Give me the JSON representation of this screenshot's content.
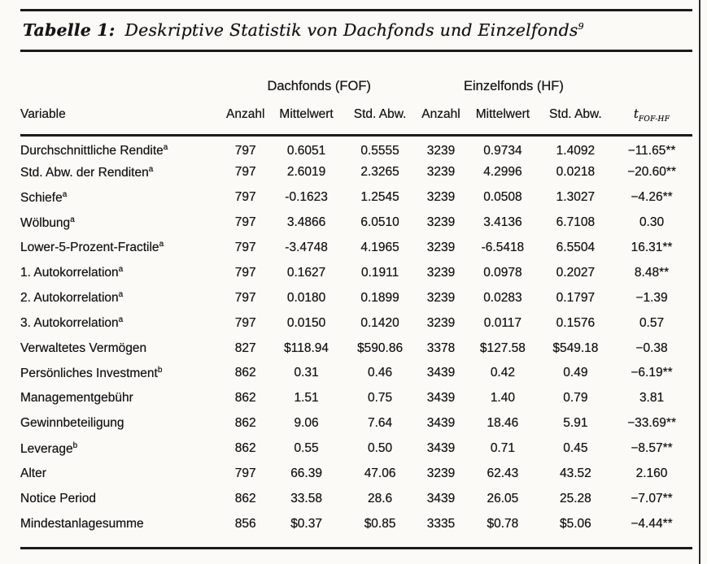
{
  "caption": {
    "label": "Tabelle 1:",
    "text": "Deskriptive Statistik von Dachfonds und Einzelfonds",
    "superscript": "9"
  },
  "table": {
    "group_headers": {
      "fof": "Dachfonds (FOF)",
      "hf": "Einzelfonds (HF)"
    },
    "columns": {
      "variable": "Variable",
      "anzahl_fof": "Anzahl",
      "mittelwert_fof": "Mittelwert",
      "std_abw_fof": "Std. Abw.",
      "anzahl_hf": "Anzahl",
      "mittelwert_hf": "Mittelwert",
      "std_abw_hf": "Std. Abw.",
      "t_base": "t",
      "t_sub": "FOF-HF"
    },
    "rows": [
      {
        "variable": "Durchschnittliche Rendite",
        "sup": "a",
        "values": [
          "797",
          "0.6051",
          "0.5555",
          "3239",
          "0.9734",
          "1.4092",
          "−11.65**"
        ]
      },
      {
        "variable": "Std. Abw. der Renditen",
        "sup": "a",
        "values": [
          "797",
          "2.6019",
          "2.3265",
          "3239",
          "4.2996",
          "0.0218",
          "−20.60**"
        ]
      },
      {
        "variable": "Schiefe",
        "sup": "a",
        "values": [
          "797",
          "-0.1623",
          "1.2545",
          "3239",
          "0.0508",
          "1.3027",
          "−4.26**"
        ]
      },
      {
        "variable": "Wölbung",
        "sup": "a",
        "values": [
          "797",
          "3.4866",
          "6.0510",
          "3239",
          "3.4136",
          "6.7108",
          "0.30"
        ]
      },
      {
        "variable": "Lower-5-Prozent-Fractile",
        "sup": "a",
        "values": [
          "797",
          "-3.4748",
          "4.1965",
          "3239",
          "-6.5418",
          "6.5504",
          "16.31**"
        ]
      },
      {
        "variable": "1. Autokorrelation",
        "sup": "a",
        "values": [
          "797",
          "0.1627",
          "0.1911",
          "3239",
          "0.0978",
          "0.2027",
          "8.48**"
        ]
      },
      {
        "variable": "2. Autokorrelation",
        "sup": "a",
        "values": [
          "797",
          "0.0180",
          "0.1899",
          "3239",
          "0.0283",
          "0.1797",
          "−1.39"
        ]
      },
      {
        "variable": "3. Autokorrelation",
        "sup": "a",
        "values": [
          "797",
          "0.0150",
          "0.1420",
          "3239",
          "0.0117",
          "0.1576",
          "0.57"
        ]
      },
      {
        "variable": "Verwaltetes Vermögen",
        "sup": "",
        "values": [
          "827",
          "$118.94",
          "$590.86",
          "3378",
          "$127.58",
          "$549.18",
          "−0.38"
        ]
      },
      {
        "variable": "Persönliches Investment",
        "sup": "b",
        "values": [
          "862",
          "0.31",
          "0.46",
          "3439",
          "0.42",
          "0.49",
          "−6.19**"
        ]
      },
      {
        "variable": "Managementgebühr",
        "sup": "",
        "values": [
          "862",
          "1.51",
          "0.75",
          "3439",
          "1.40",
          "0.79",
          "3.81"
        ]
      },
      {
        "variable": "Gewinnbeteiligung",
        "sup": "",
        "values": [
          "862",
          "9.06",
          "7.64",
          "3439",
          "18.46",
          "5.91",
          "−33.69**"
        ]
      },
      {
        "variable": "Leverage",
        "sup": "b",
        "values": [
          "862",
          "0.55",
          "0.50",
          "3439",
          "0.71",
          "0.45",
          "−8.57**"
        ]
      },
      {
        "variable": "Alter",
        "sup": "",
        "values": [
          "797",
          "66.39",
          "47.06",
          "3239",
          "62.43",
          "43.52",
          "2.160"
        ]
      },
      {
        "variable": "Notice Period",
        "sup": "",
        "values": [
          "862",
          "33.58",
          "28.6",
          "3439",
          "26.05",
          "25.28",
          "−7.07**"
        ]
      },
      {
        "variable": "Mindestanlagesumme",
        "sup": "",
        "values": [
          "856",
          "$0.37",
          "$0.85",
          "3335",
          "$0.78",
          "$5.06",
          "−4.44**"
        ]
      }
    ]
  }
}
